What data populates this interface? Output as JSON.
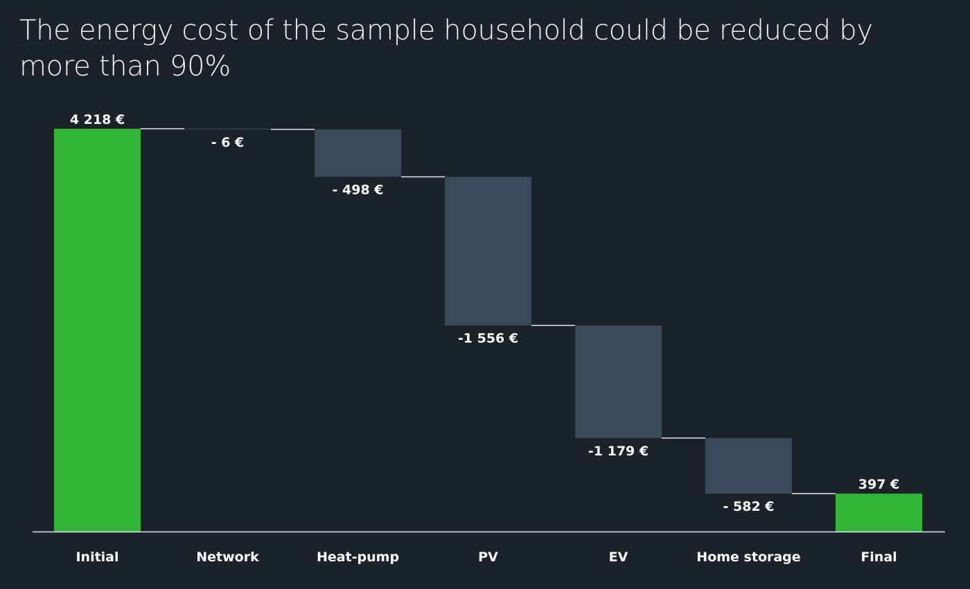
{
  "title": "The energy cost of the sample household could be reduced by more than 90%",
  "colors": {
    "background": "#1c2229",
    "total_bar": "#35b537",
    "delta_bar": "#3a4958",
    "connector": "#e6e6e6",
    "text": "#ffffff"
  },
  "chart_data": {
    "type": "waterfall",
    "title": "The energy cost of the sample household could be reduced by more than 90%",
    "categories": [
      "Initial",
      "Network",
      "Heat-pump",
      "PV",
      "EV",
      "Home storage",
      "Final"
    ],
    "steps": [
      {
        "category": "Initial",
        "kind": "total",
        "value": 4218,
        "label": "4 218 €"
      },
      {
        "category": "Network",
        "kind": "delta",
        "value": -6,
        "label": "- 6 €"
      },
      {
        "category": "Heat-pump",
        "kind": "delta",
        "value": -498,
        "label": "- 498 €"
      },
      {
        "category": "PV",
        "kind": "delta",
        "value": -1556,
        "label": "-1 556 €"
      },
      {
        "category": "EV",
        "kind": "delta",
        "value": -1179,
        "label": "-1 179 €"
      },
      {
        "category": "Home storage",
        "kind": "delta",
        "value": -582,
        "label": "- 582 €"
      },
      {
        "category": "Final",
        "kind": "total",
        "value": 397,
        "label": "397 €"
      }
    ],
    "ylim": [
      0,
      4218
    ],
    "grid": false,
    "legend": "none"
  }
}
